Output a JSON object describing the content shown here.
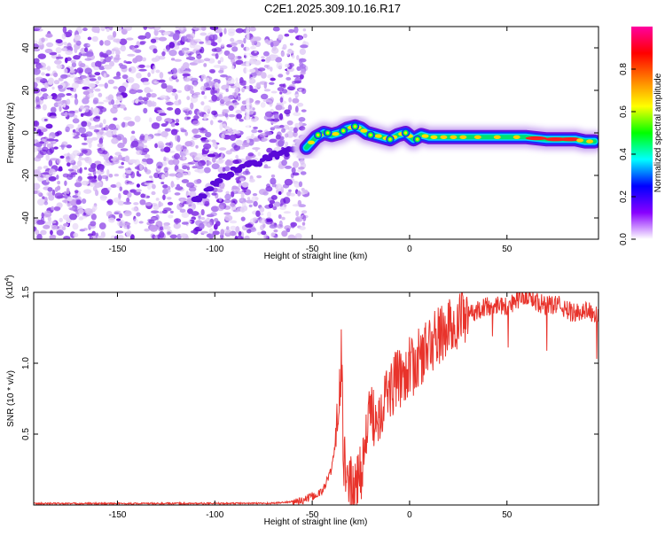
{
  "title": "C2E1.2025.309.10.16.R17",
  "colors": {
    "snr_line": "#e8332b",
    "frame": "#000000"
  },
  "chart_data": [
    {
      "type": "heatmap",
      "name": "spectrogram",
      "xlabel": "Height of straight line (km)",
      "ylabel": "Frequency (Hz)",
      "xlim": [
        -193,
        97
      ],
      "ylim": [
        -50,
        50
      ],
      "xticks": [
        -150,
        -100,
        -50,
        0,
        50
      ],
      "yticks": [
        -40,
        -20,
        0,
        20,
        40
      ],
      "noise_region_x": [
        -193,
        -53
      ],
      "signal_trace": {
        "x": [
          -53,
          -48,
          -44,
          -40,
          -36,
          -32,
          -28,
          -25,
          -22,
          -18,
          -14,
          -10,
          -6,
          -2,
          2,
          6,
          10,
          15,
          20,
          25,
          30,
          40,
          50,
          60,
          70,
          80,
          85,
          90,
          95
        ],
        "y": [
          -7,
          -2,
          0,
          -1,
          0,
          2,
          3,
          2,
          0,
          -1,
          -2,
          -3,
          -1,
          0,
          -3,
          -1,
          -2,
          -2,
          -2,
          -2,
          -2,
          -2,
          -2,
          -2,
          -3,
          -3,
          -3,
          -4,
          -4
        ]
      },
      "colorbar": {
        "label": "Normalized spectral amplitude",
        "range": [
          0,
          1
        ],
        "ticks": [
          "0.0",
          "0.2",
          "0.4",
          "0.6",
          "0.8"
        ],
        "stops": [
          "#ffffff",
          "#8800ff",
          "#0000ff",
          "#00ffff",
          "#00ff00",
          "#ffff00",
          "#ff8000",
          "#ff0000",
          "#ff00a0"
        ]
      }
    },
    {
      "type": "line",
      "name": "snr",
      "xlabel": "Height of straight line (km)",
      "ylabel": "SNR (10 * v/v)",
      "exponent_label": "(x10",
      "exponent_power": "4",
      "exponent_close": ")",
      "xlim": [
        -193,
        97
      ],
      "ylim": [
        0,
        1.5
      ],
      "xticks": [
        -150,
        -100,
        -50,
        0,
        50
      ],
      "yticks": [
        "0.5",
        "1.0",
        "1.5"
      ],
      "series": [
        {
          "name": "SNR",
          "x": [
            -193,
            -120,
            -70,
            -55,
            -45,
            -40,
            -37,
            -35,
            -34,
            -33,
            -31,
            -29,
            -28,
            -26,
            -24,
            -22,
            -20,
            -17,
            -14,
            -11,
            -8,
            -5,
            -2,
            2,
            6,
            10,
            14,
            18,
            22,
            26,
            30,
            35,
            40,
            45,
            50,
            55,
            60,
            65,
            70,
            75,
            80,
            85,
            90,
            97
          ],
          "y": [
            0.01,
            0.01,
            0.012,
            0.03,
            0.09,
            0.25,
            0.55,
            1.05,
            0.35,
            0.25,
            0.15,
            0.1,
            0.08,
            0.2,
            0.3,
            0.5,
            0.65,
            0.62,
            0.72,
            0.8,
            0.85,
            0.9,
            0.95,
            0.98,
            1.05,
            1.12,
            1.18,
            1.22,
            1.26,
            1.3,
            1.33,
            1.38,
            1.4,
            1.42,
            1.4,
            1.45,
            1.48,
            1.44,
            1.4,
            1.42,
            1.38,
            1.35,
            1.38,
            1.33
          ]
        }
      ]
    }
  ]
}
